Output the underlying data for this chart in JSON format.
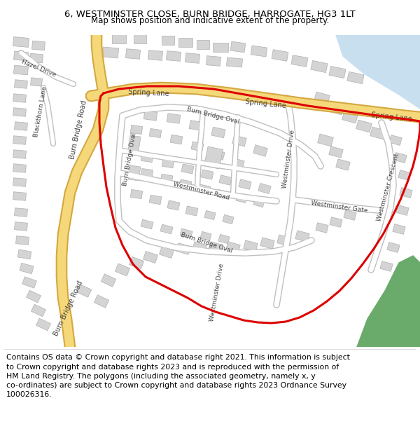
{
  "title": "6, WESTMINSTER CLOSE, BURN BRIDGE, HARROGATE, HG3 1LT",
  "subtitle": "Map shows position and indicative extent of the property.",
  "footer": "Contains OS data © Crown copyright and database right 2021. This information is subject to Crown copyright and database rights 2023 and is reproduced with the permission of HM Land Registry. The polygons (including the associated geometry, namely x, y co-ordinates) are subject to Crown copyright and database rights 2023 Ordnance Survey 100026316.",
  "title_fontsize": 9.5,
  "subtitle_fontsize": 8.5,
  "footer_fontsize": 7.8,
  "road_color_main": "#f5d87a",
  "road_edge_color": "#d4a840",
  "building_color": "#d4d4d4",
  "building_edge": "#b0b0b0",
  "red_line_color": "#dd0000",
  "green_area_color": "#6aaa6a",
  "water_color": "#c8dff0",
  "minor_road_color": "#ffffff",
  "minor_road_edge": "#c0c0c0"
}
